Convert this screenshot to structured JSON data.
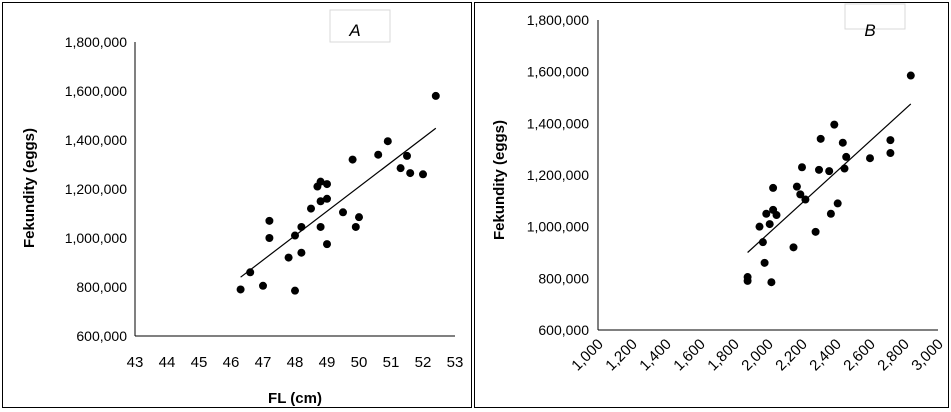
{
  "chart_data": [
    {
      "type": "scatter",
      "panel": "A",
      "xlabel": "FL (cm)",
      "ylabel": "Fekundity (eggs)",
      "xlim": [
        43,
        53
      ],
      "ylim": [
        600000,
        1800000
      ],
      "x_ticks": [
        "43",
        "44",
        "45",
        "46",
        "47",
        "48",
        "49",
        "50",
        "51",
        "52",
        "53"
      ],
      "y_ticks": [
        "600,000",
        "800,000",
        "1,000,000",
        "1,200,000",
        "1,400,000",
        "1,600,000",
        "1,800,000"
      ],
      "grid": false,
      "trendline": [
        [
          46.3,
          840000
        ],
        [
          52.4,
          1448000
        ]
      ],
      "points": [
        [
          46.3,
          790000
        ],
        [
          46.6,
          860000
        ],
        [
          47.0,
          805000
        ],
        [
          47.2,
          1070000
        ],
        [
          47.2,
          1000000
        ],
        [
          47.8,
          920000
        ],
        [
          48.0,
          785000
        ],
        [
          48.0,
          1010000
        ],
        [
          48.2,
          1045000
        ],
        [
          48.2,
          940000
        ],
        [
          48.5,
          1120000
        ],
        [
          48.7,
          1210000
        ],
        [
          48.8,
          1230000
        ],
        [
          48.8,
          1150000
        ],
        [
          48.8,
          1045000
        ],
        [
          49.0,
          1220000
        ],
        [
          49.0,
          1160000
        ],
        [
          49.0,
          975000
        ],
        [
          49.5,
          1105000
        ],
        [
          49.8,
          1320000
        ],
        [
          49.9,
          1045000
        ],
        [
          50.0,
          1085000
        ],
        [
          50.6,
          1340000
        ],
        [
          50.9,
          1395000
        ],
        [
          51.3,
          1285000
        ],
        [
          51.5,
          1335000
        ],
        [
          51.6,
          1265000
        ],
        [
          52.0,
          1260000
        ],
        [
          52.4,
          1580000
        ]
      ]
    },
    {
      "type": "scatter",
      "panel": "B",
      "xlabel": "",
      "ylabel": "Fekundity (eggs)",
      "xlim": [
        1000,
        3000
      ],
      "ylim": [
        600000,
        1800000
      ],
      "x_ticks": [
        "1,000",
        "1,200",
        "1,400",
        "1,600",
        "1,800",
        "2,000",
        "2,200",
        "2,400",
        "2,600",
        "2,800",
        "3,000"
      ],
      "y_ticks": [
        "600,000",
        "800,000",
        "1,000,000",
        "1,200,000",
        "1,400,000",
        "1,600,000",
        "1,800,000"
      ],
      "grid": false,
      "trendline": [
        [
          1880,
          900000
        ],
        [
          2840,
          1475000
        ]
      ],
      "points": [
        [
          1880,
          790000
        ],
        [
          1880,
          805000
        ],
        [
          1950,
          1000000
        ],
        [
          1970,
          940000
        ],
        [
          1980,
          860000
        ],
        [
          1990,
          1050000
        ],
        [
          2010,
          1010000
        ],
        [
          2020,
          785000
        ],
        [
          2030,
          1065000
        ],
        [
          2030,
          1150000
        ],
        [
          2050,
          1045000
        ],
        [
          2150,
          920000
        ],
        [
          2170,
          1155000
        ],
        [
          2190,
          1125000
        ],
        [
          2200,
          1230000
        ],
        [
          2220,
          1105000
        ],
        [
          2280,
          980000
        ],
        [
          2300,
          1220000
        ],
        [
          2310,
          1340000
        ],
        [
          2360,
          1215000
        ],
        [
          2370,
          1050000
        ],
        [
          2390,
          1395000
        ],
        [
          2410,
          1090000
        ],
        [
          2440,
          1325000
        ],
        [
          2450,
          1225000
        ],
        [
          2460,
          1270000
        ],
        [
          2600,
          1265000
        ],
        [
          2720,
          1335000
        ],
        [
          2720,
          1285000
        ],
        [
          2840,
          1585000
        ]
      ]
    }
  ]
}
